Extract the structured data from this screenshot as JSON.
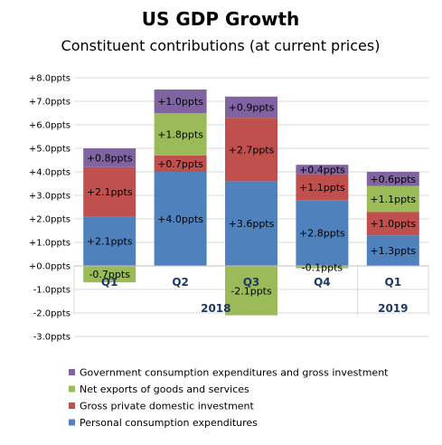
{
  "chart_data": {
    "type": "bar",
    "stacked": true,
    "title": "US GDP Growth",
    "subtitle": "Constituent contributions (at current prices)",
    "categories": [
      "Q1",
      "Q2",
      "Q3",
      "Q4",
      "Q1"
    ],
    "groups": [
      {
        "label": "2018",
        "categories": [
          0,
          1,
          2,
          3
        ]
      },
      {
        "label": "2019",
        "categories": [
          4
        ]
      }
    ],
    "ylim": [
      -3.0,
      8.0
    ],
    "yticks": [
      -3,
      -2,
      -1,
      0,
      1,
      2,
      3,
      4,
      5,
      6,
      7,
      8
    ],
    "ytick_labels": [
      "-3.0ppts",
      "-2.0ppts",
      "-1.0ppts",
      "+0.0ppts",
      "+1.0ppts",
      "+2.0ppts",
      "+3.0ppts",
      "+4.0ppts",
      "+5.0ppts",
      "+6.0ppts",
      "+7.0ppts",
      "+8.0ppts"
    ],
    "grid": true,
    "legend_position": "bottom",
    "series": [
      {
        "name": "Personal consumption expenditures",
        "color": "#4f81bd",
        "values": [
          2.1,
          4.0,
          3.6,
          2.8,
          1.3
        ],
        "labels": [
          "+2.1ppts",
          "+4.0ppts",
          "+3.6ppts",
          "+2.8ppts",
          "+1.3ppts"
        ]
      },
      {
        "name": "Gross private domestic investment",
        "color": "#c0504d",
        "values": [
          2.1,
          0.7,
          2.7,
          1.1,
          1.0
        ],
        "labels": [
          "+2.1ppts",
          "+0.7ppts",
          "+2.7ppts",
          "+1.1ppts",
          "+1.0ppts"
        ]
      },
      {
        "name": "Net exports of goods and services",
        "color": "#9bbb59",
        "values": [
          -0.7,
          1.8,
          -2.1,
          -0.1,
          1.1
        ],
        "labels": [
          "-0.7ppts",
          "+1.8ppts",
          "-2.1ppts",
          "-0.1ppts",
          "+1.1ppts"
        ]
      },
      {
        "name": "Government consumption expenditures and gross investment",
        "color": "#8064a2",
        "values": [
          0.8,
          1.0,
          0.9,
          0.4,
          0.6
        ],
        "labels": [
          "+0.8ppts",
          "+1.0ppts",
          "+0.9ppts",
          "+0.4ppts",
          "+0.6ppts"
        ]
      }
    ],
    "legend_order": [
      3,
      2,
      1,
      0
    ]
  }
}
